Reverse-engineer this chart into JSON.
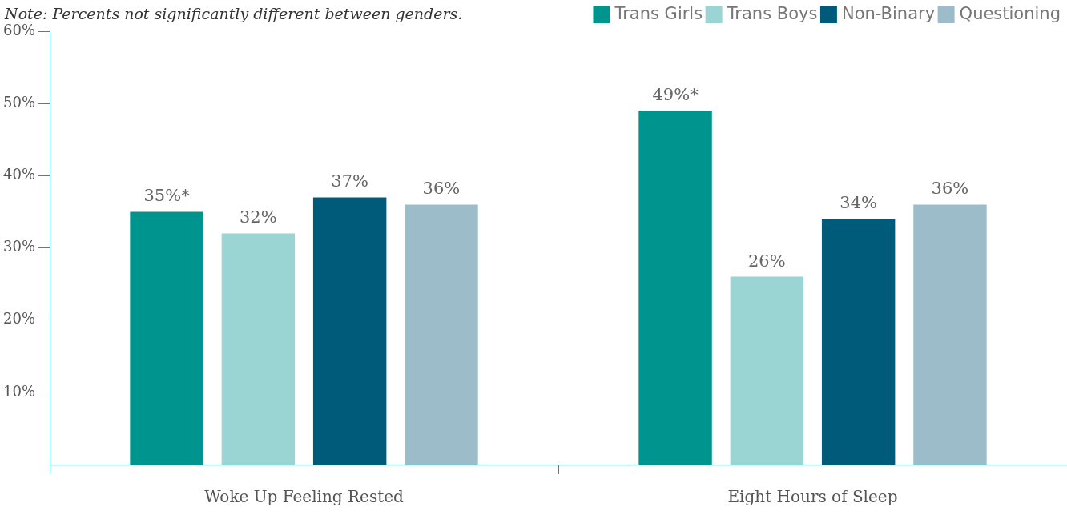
{
  "chart_data": {
    "type": "bar",
    "annotations": [
      "Note: Percents not significantly different between genders."
    ],
    "categories": [
      "Woke Up Feeling Rested",
      "Eight Hours of Sleep"
    ],
    "series": [
      {
        "name": "Trans Girls",
        "color": "#00948f",
        "values": [
          35,
          49
        ],
        "value_labels": [
          "35%*",
          "49%*"
        ]
      },
      {
        "name": "Trans Boys",
        "color": "#9ad4d3",
        "values": [
          32,
          26
        ],
        "value_labels": [
          "32%",
          "26%"
        ]
      },
      {
        "name": "Non-Binary",
        "color": "#005a7a",
        "values": [
          37,
          34
        ],
        "value_labels": [
          "37%",
          "34%"
        ]
      },
      {
        "name": "Questioning",
        "color": "#9bbcc8",
        "values": [
          36,
          36
        ],
        "value_labels": [
          "36%",
          "36%"
        ]
      }
    ],
    "ylim": [
      0,
      60
    ],
    "yticks": [
      {
        "value": 10,
        "label": "10%"
      },
      {
        "value": 20,
        "label": "20%"
      },
      {
        "value": 30,
        "label": "30%"
      },
      {
        "value": 40,
        "label": "40%"
      },
      {
        "value": 50,
        "label": "50%"
      },
      {
        "value": 60,
        "label": "60%"
      }
    ],
    "legend": "top right"
  }
}
